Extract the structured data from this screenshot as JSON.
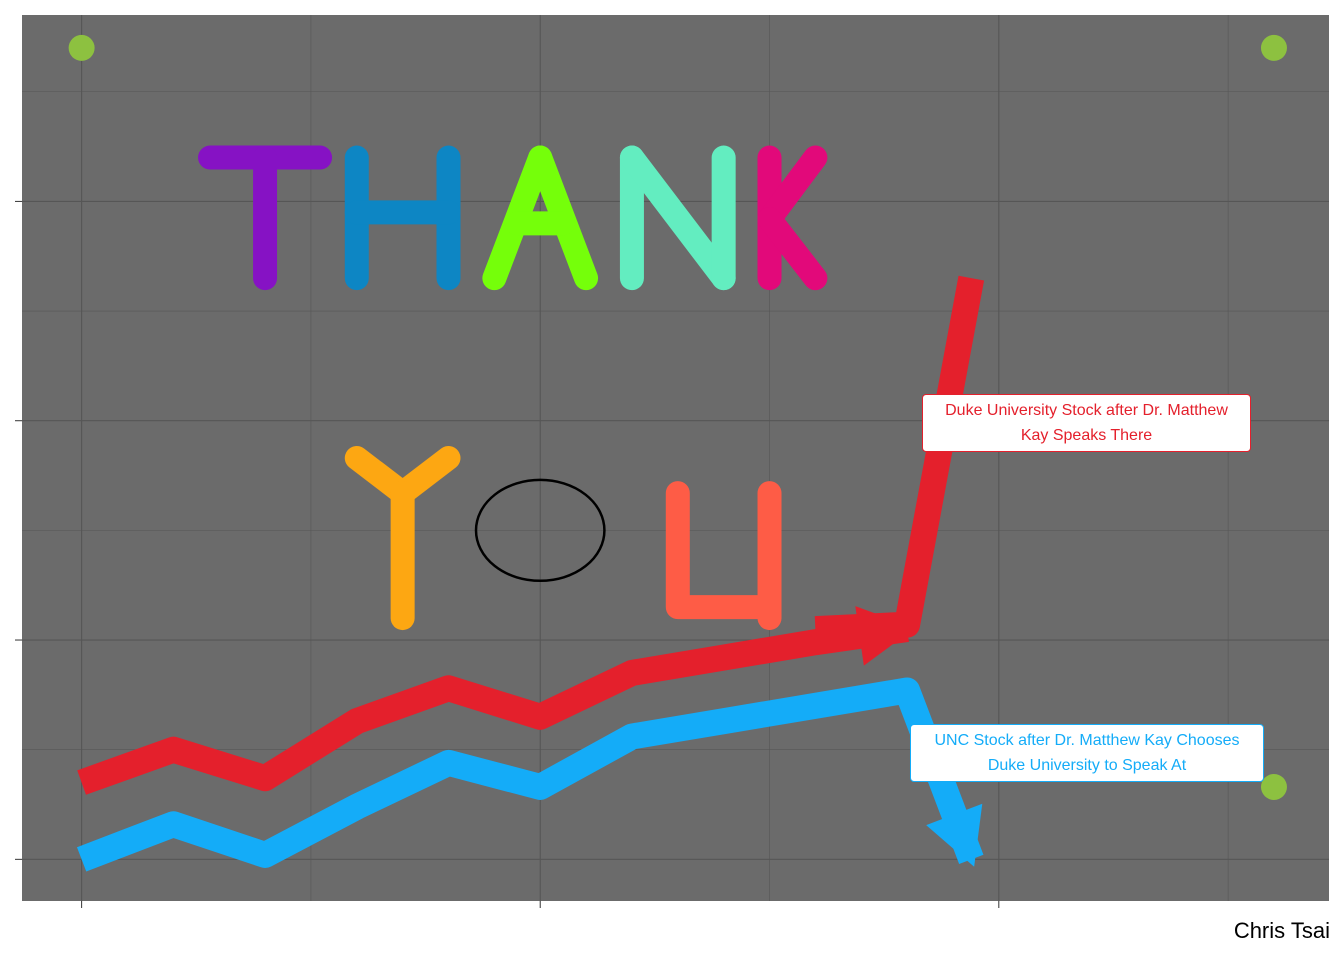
{
  "chart_data": {
    "type": "line",
    "title": "",
    "xlabel": "",
    "ylabel": "",
    "xlim": [
      -0.13,
      2.72
    ],
    "ylim": [
      -0.19,
      3.85
    ],
    "x_ticks": [
      0,
      1,
      2
    ],
    "y_ticks": [
      0,
      1,
      2,
      3
    ],
    "grid": true,
    "background": "#6b6b6b",
    "tick_labels_shown": false,
    "series": [
      {
        "color": "#e4202c",
        "arrow": "up",
        "x": [
          0,
          0.2,
          0.4,
          0.6,
          0.8,
          1.0,
          1.2,
          1.4,
          1.6,
          1.8
        ],
        "y": [
          0.35,
          0.5,
          0.37,
          0.63,
          0.78,
          0.65,
          0.85,
          0.92,
          0.99,
          1.05
        ]
      },
      {
        "color": "#e4202c",
        "x": [
          1.6,
          1.8,
          1.94
        ],
        "y": [
          1.05,
          1.07,
          2.65
        ]
      },
      {
        "color": "#14acf8",
        "arrow": "down",
        "x": [
          0,
          0.2,
          0.4,
          0.6,
          0.8,
          1.0,
          1.2,
          1.4,
          1.6,
          1.8,
          1.94
        ],
        "y": [
          0,
          0.16,
          0.02,
          0.24,
          0.44,
          0.33,
          0.56,
          0.63,
          0.7,
          0.77,
          0.0
        ]
      }
    ],
    "letter_strokes": [
      {
        "letter": "T",
        "color": "#8612c4",
        "strokes": [
          [
            [
              0.28,
              3.2
            ],
            [
              0.52,
              3.2
            ]
          ],
          [
            [
              0.4,
              3.2
            ],
            [
              0.4,
              2.65
            ]
          ]
        ]
      },
      {
        "letter": "H",
        "color": "#0d86c4",
        "strokes": [
          [
            [
              0.6,
              3.2
            ],
            [
              0.6,
              2.65
            ]
          ],
          [
            [
              0.8,
              3.2
            ],
            [
              0.8,
              2.65
            ]
          ],
          [
            [
              0.6,
              2.95
            ],
            [
              0.8,
              2.95
            ]
          ]
        ]
      },
      {
        "letter": "A",
        "color": "#75ff0a",
        "strokes": [
          [
            [
              0.9,
              2.65
            ],
            [
              1.0,
              3.2
            ]
          ],
          [
            [
              1.0,
              3.2
            ],
            [
              1.1,
              2.65
            ]
          ],
          [
            [
              0.95,
              2.9
            ],
            [
              1.05,
              2.9
            ]
          ]
        ]
      },
      {
        "letter": "N",
        "color": "#63edc0",
        "strokes": [
          [
            [
              1.2,
              2.65
            ],
            [
              1.2,
              3.2
            ]
          ],
          [
            [
              1.2,
              3.2
            ],
            [
              1.4,
              2.65
            ]
          ],
          [
            [
              1.4,
              2.65
            ],
            [
              1.4,
              3.2
            ]
          ]
        ]
      },
      {
        "letter": "K",
        "color": "#e2097a",
        "strokes": [
          [
            [
              1.5,
              2.65
            ],
            [
              1.5,
              3.2
            ]
          ],
          [
            [
              1.5,
              2.92
            ],
            [
              1.6,
              3.2
            ]
          ],
          [
            [
              1.5,
              2.92
            ],
            [
              1.6,
              2.65
            ]
          ]
        ]
      },
      {
        "letter": "Y",
        "color": "#fda712",
        "strokes": [
          [
            [
              0.6,
              1.83
            ],
            [
              0.7,
              1.67
            ]
          ],
          [
            [
              0.8,
              1.83
            ],
            [
              0.7,
              1.67
            ]
          ],
          [
            [
              0.7,
              1.67
            ],
            [
              0.7,
              1.1
            ]
          ]
        ]
      },
      {
        "letter": "O",
        "color": "#000000",
        "ellipse": {
          "cx": 1.0,
          "cy": 1.5,
          "rx": 0.14,
          "ry": 0.23
        }
      },
      {
        "letter": "U",
        "color": "#fe5c46",
        "strokes": [
          [
            [
              1.3,
              1.67
            ],
            [
              1.3,
              1.15
            ],
            [
              1.5,
              1.15
            ]
          ],
          [
            [
              1.5,
              1.67
            ],
            [
              1.5,
              1.1
            ]
          ]
        ]
      }
    ],
    "corner_points": {
      "color": "#8dc140",
      "points": [
        [
          0,
          3.7
        ],
        [
          2.6,
          3.7
        ],
        [
          2.6,
          0.33
        ]
      ]
    },
    "annotations": [
      {
        "text": "Duke University Stock after Dr. Matthew Kay Speaks There",
        "color": "#e4202c"
      },
      {
        "text": "UNC Stock after Dr. Matthew Kay Chooses Duke University to Speak At",
        "color": "#14acf8"
      }
    ]
  },
  "labels": {
    "duke_line1": "Duke University Stock after Dr. Matthew",
    "duke_line2": "Kay Speaks There",
    "unc_line1": "UNC Stock after Dr. Matthew Kay Chooses",
    "unc_line2": "Duke University to Speak At",
    "caption": "Chris Tsai"
  }
}
